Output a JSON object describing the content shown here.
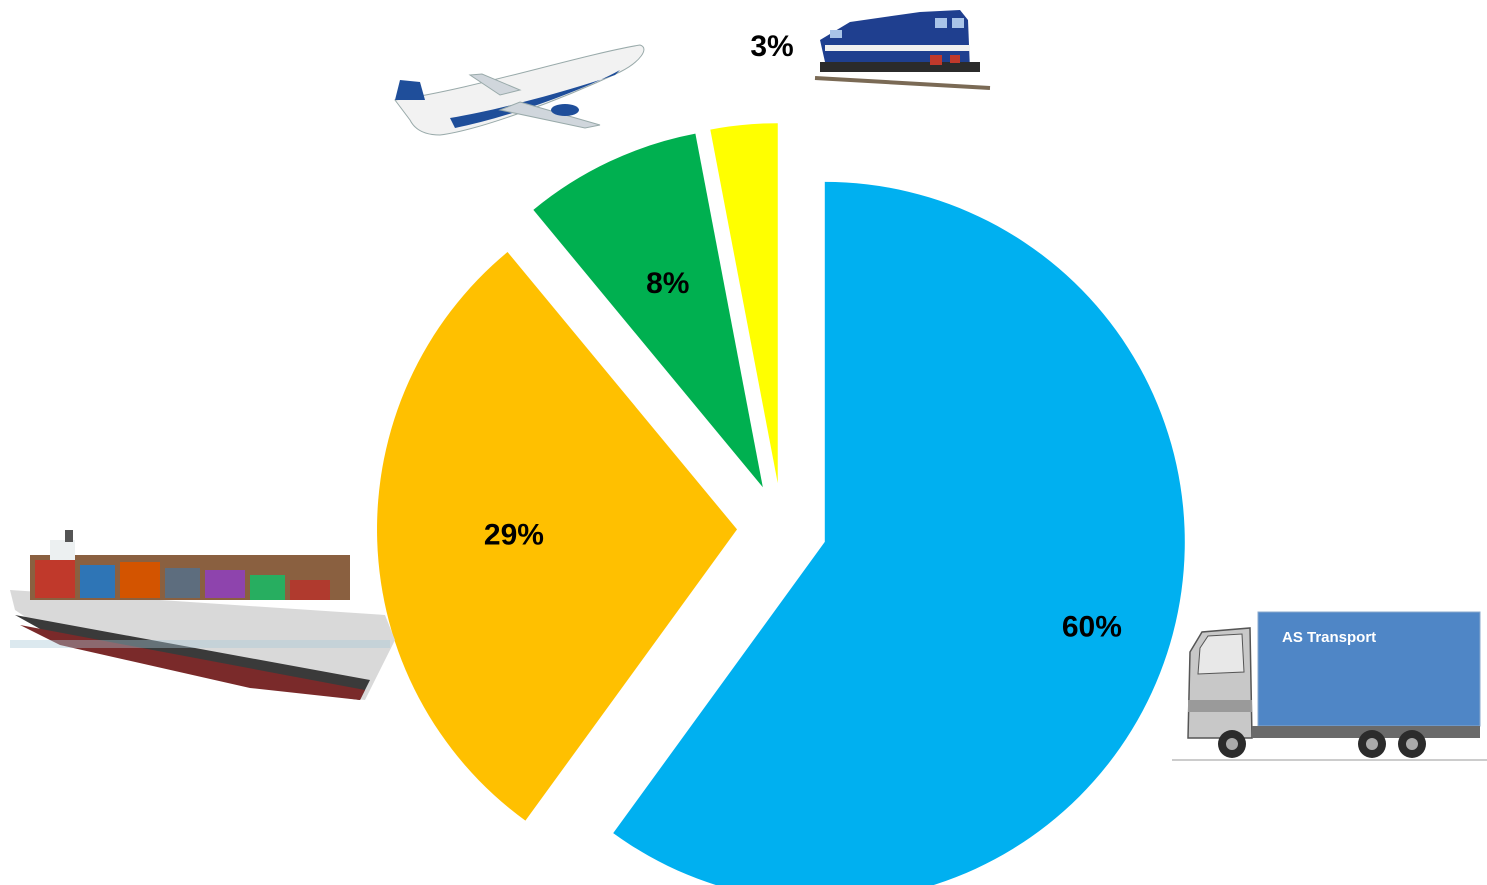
{
  "chart_data": {
    "type": "pie",
    "title": "",
    "slices": [
      {
        "value": 60,
        "label": "60%",
        "color": "#00B0F0",
        "icon": "truck-icon"
      },
      {
        "value": 29,
        "label": "29%",
        "color": "#FFC000",
        "icon": "ship-icon"
      },
      {
        "value": 8,
        "label": "8%",
        "color": "#00B050",
        "icon": "airplane-icon"
      },
      {
        "value": 3,
        "label": "3%",
        "color": "#FFFF00",
        "icon": "train-icon"
      }
    ],
    "exploded": true,
    "start_angle": "12 o'clock, clockwise"
  },
  "truck_label": "AS Transport"
}
